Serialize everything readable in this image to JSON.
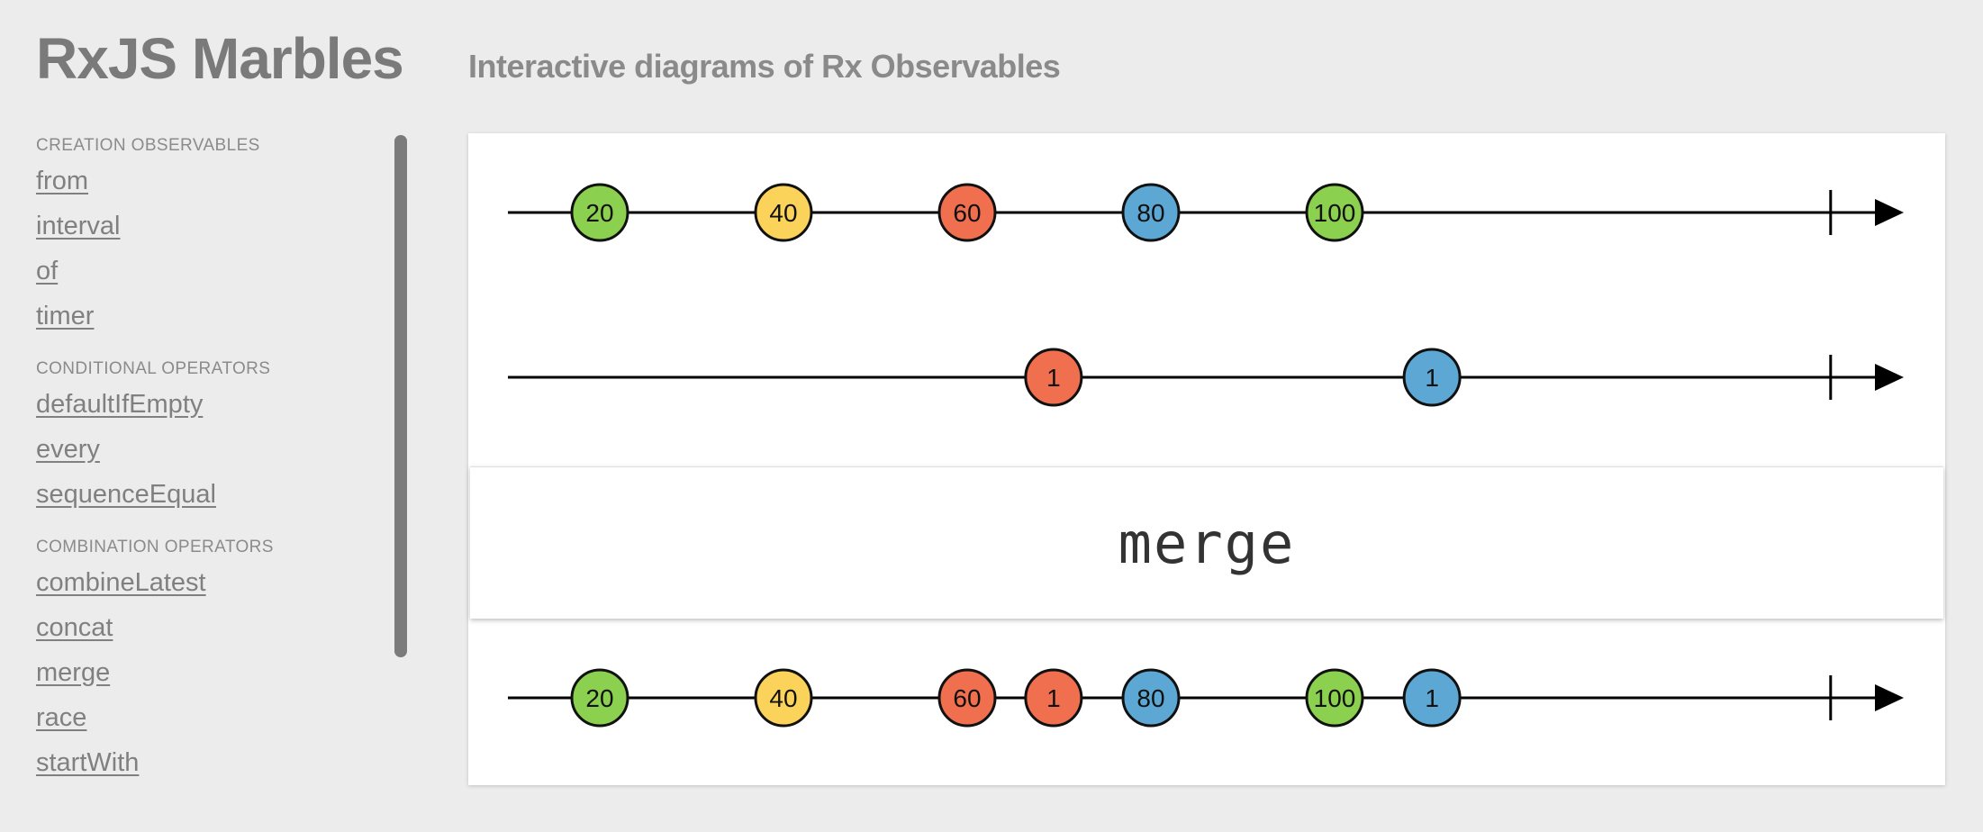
{
  "header": {
    "title": "RxJS Marbles",
    "subtitle": "Interactive diagrams of Rx Observables"
  },
  "sidebar": {
    "groups": [
      {
        "title": "CREATION OBSERVABLES",
        "items": [
          "from",
          "interval",
          "of",
          "timer"
        ]
      },
      {
        "title": "CONDITIONAL OPERATORS",
        "items": [
          "defaultIfEmpty",
          "every",
          "sequenceEqual"
        ]
      },
      {
        "title": "COMBINATION OPERATORS",
        "items": [
          "combineLatest",
          "concat",
          "merge",
          "race",
          "startWith"
        ]
      }
    ]
  },
  "diagram": {
    "operator": "merge",
    "colors": {
      "green": "#8bd04f",
      "yellow": "#fbd35a",
      "red": "#ef6f4f",
      "blue": "#5ca7d4",
      "line": "#000000"
    },
    "inputs": [
      {
        "name": "input-1",
        "marbles": [
          {
            "label": "20",
            "time": 5,
            "color": "green"
          },
          {
            "label": "40",
            "time": 15,
            "color": "yellow"
          },
          {
            "label": "60",
            "time": 25,
            "color": "red"
          },
          {
            "label": "80",
            "time": 35,
            "color": "blue"
          },
          {
            "label": "100",
            "time": 45,
            "color": "green"
          }
        ],
        "completion_time": 72
      },
      {
        "name": "input-2",
        "marbles": [
          {
            "label": "1",
            "time": 29.7,
            "color": "red"
          },
          {
            "label": "1",
            "time": 50.3,
            "color": "blue"
          }
        ],
        "completion_time": 72
      }
    ],
    "output": {
      "name": "output",
      "marbles": [
        {
          "label": "20",
          "time": 5,
          "color": "green"
        },
        {
          "label": "40",
          "time": 15,
          "color": "yellow"
        },
        {
          "label": "60",
          "time": 25,
          "color": "red"
        },
        {
          "label": "1",
          "time": 29.7,
          "color": "red"
        },
        {
          "label": "80",
          "time": 35,
          "color": "blue"
        },
        {
          "label": "100",
          "time": 45,
          "color": "green"
        },
        {
          "label": "1",
          "time": 50.3,
          "color": "blue"
        }
      ],
      "completion_time": 72
    }
  }
}
